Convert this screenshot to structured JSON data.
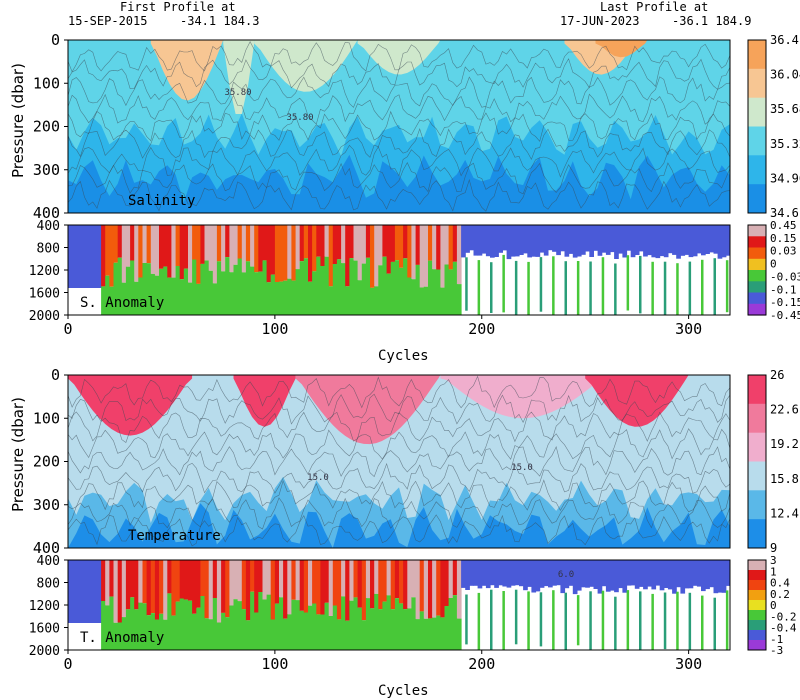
{
  "header": {
    "first_label": "First Profile at",
    "first_date": "15-SEP-2015",
    "first_coords": "-34.1  184.3",
    "last_label": "Last Profile at",
    "last_date": "17-JUN-2023",
    "last_coords": "-36.1  184.9"
  },
  "chart_data": [
    {
      "type": "heatmap",
      "title": "Salinity",
      "ylabel": "Pressure (dbar)",
      "xlim": [
        0,
        320
      ],
      "ylim": [
        400,
        0
      ],
      "y_ticks": [
        "0",
        "100",
        "200",
        "300",
        "400"
      ],
      "colorbar": {
        "labels": [
          "36.4",
          "36.04",
          "35.68",
          "35.32",
          "34.96",
          "34.6"
        ],
        "colors": [
          "#f6a35a",
          "#f7c693",
          "#cfe8cc",
          "#5fd4e8",
          "#2eb5ea",
          "#1a8fe6"
        ]
      }
    },
    {
      "type": "heatmap",
      "title": "S. Anomaly",
      "ylim": [
        2000,
        400
      ],
      "y_ticks": [
        "400",
        "800",
        "1200",
        "1600",
        "2000"
      ],
      "colorbar": {
        "labels": [
          "0.45",
          "0.15",
          "0.03",
          "0",
          "-0.03",
          "-0.1",
          "-0.15",
          "-0.45"
        ],
        "colors": [
          "#d8b0b4",
          "#e01818",
          "#f25c0c",
          "#f0c020",
          "#48c838",
          "#2a9e78",
          "#4a5ad8",
          "#9a3ad8"
        ]
      }
    },
    {
      "type": "heatmap",
      "title": "Temperature",
      "ylabel": "Pressure (dbar)",
      "xlabel": "Cycles",
      "xlim": [
        0,
        320
      ],
      "ylim": [
        400,
        0
      ],
      "y_ticks": [
        "0",
        "100",
        "200",
        "300",
        "400"
      ],
      "colorbar": {
        "labels": [
          "26",
          "22.6",
          "19.2",
          "15.8",
          "12.4",
          "9"
        ],
        "colors": [
          "#f0406a",
          "#f07a9c",
          "#f0aecd",
          "#b8dcec",
          "#5ab8e8",
          "#1d8ee8"
        ]
      }
    },
    {
      "type": "heatmap",
      "title": "T. Anomaly",
      "xlabel": "Cycles",
      "ylim": [
        2000,
        400
      ],
      "y_ticks": [
        "400",
        "800",
        "1200",
        "1600",
        "2000"
      ],
      "colorbar": {
        "labels": [
          "3",
          "1",
          "0.4",
          "0.2",
          "0",
          "-0.2",
          "-0.4",
          "-1",
          "-3"
        ],
        "colors": [
          "#d8b0b4",
          "#e01818",
          "#f04410",
          "#f2a010",
          "#e8e020",
          "#48c838",
          "#2a9e78",
          "#4a5ad8",
          "#9a3ad8"
        ]
      }
    }
  ],
  "x_ticks": [
    "0",
    "100",
    "200",
    "300"
  ],
  "contour_labels": [
    "35.80",
    "35.80",
    "15.0",
    "15.0",
    "6.0"
  ]
}
